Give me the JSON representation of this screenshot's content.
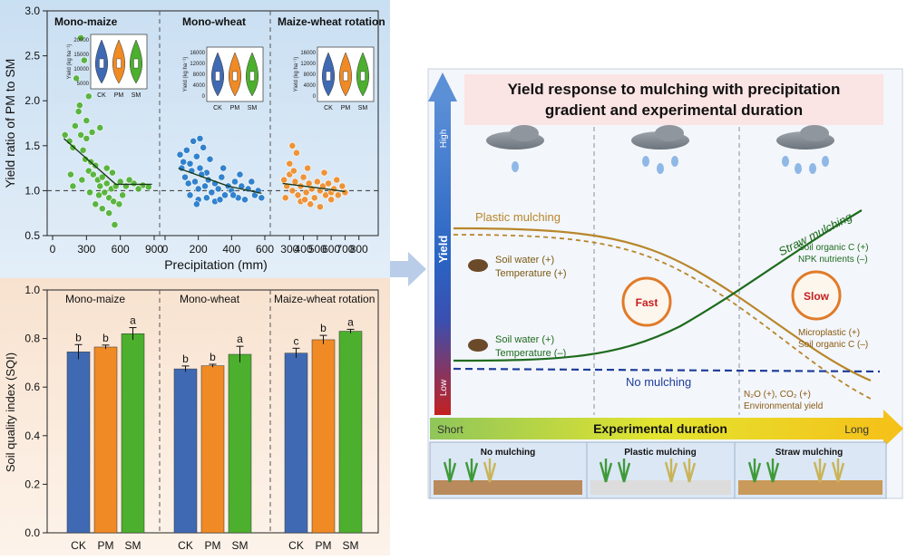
{
  "chart_data": [
    {
      "type": "scatter",
      "ylabel": "Yield ratio of PM to SM",
      "xlabel": "Precipitation (mm)",
      "ylim": [
        0.5,
        3.0
      ],
      "yticks": [
        "0.5",
        "1.0",
        "1.5",
        "2.0",
        "2.5",
        "3.0"
      ],
      "reference_line": 1.0,
      "panels": [
        {
          "title": "Mono-maize",
          "xlim": [
            0,
            900
          ],
          "xticks": [
            "0",
            "300",
            "600",
            "900"
          ],
          "color": "#4caf2e",
          "trend": [
            [
              100,
              1.58
            ],
            [
              560,
              1.07
            ],
            [
              880,
              1.07
            ]
          ],
          "points": [
            [
              110,
              1.62
            ],
            [
              150,
              1.55
            ],
            [
              180,
              1.48
            ],
            [
              200,
              1.72
            ],
            [
              230,
              1.88
            ],
            [
              250,
              1.62
            ],
            [
              270,
              1.45
            ],
            [
              290,
              1.35
            ],
            [
              300,
              1.58
            ],
            [
              320,
              1.22
            ],
            [
              340,
              1.32
            ],
            [
              360,
              1.18
            ],
            [
              380,
              1.28
            ],
            [
              400,
              1.12
            ],
            [
              420,
              1.05
            ],
            [
              440,
              1.15
            ],
            [
              460,
              0.98
            ],
            [
              480,
              1.08
            ],
            [
              500,
              0.92
            ],
            [
              520,
              1.02
            ],
            [
              540,
              0.88
            ],
            [
              560,
              1.05
            ],
            [
              600,
              1.1
            ],
            [
              650,
              1.05
            ],
            [
              720,
              1.08
            ],
            [
              800,
              1.06
            ],
            [
              210,
              2.25
            ],
            [
              250,
              2.7
            ],
            [
              280,
              2.45
            ],
            [
              320,
              2.05
            ],
            [
              240,
              1.95
            ],
            [
              300,
              1.78
            ],
            [
              350,
              1.65
            ],
            [
              420,
              1.7
            ],
            [
              480,
              1.25
            ],
            [
              380,
              0.85
            ],
            [
              440,
              0.8
            ],
            [
              500,
              0.75
            ],
            [
              550,
              0.62
            ],
            [
              590,
              0.85
            ],
            [
              180,
              1.05
            ],
            [
              160,
              1.18
            ],
            [
              260,
              1.12
            ],
            [
              330,
              0.98
            ],
            [
              410,
              0.95
            ],
            [
              530,
              1.2
            ],
            [
              620,
              0.95
            ],
            [
              680,
              1.12
            ],
            [
              760,
              1.02
            ],
            [
              850,
              1.04
            ]
          ]
        },
        {
          "title": "Mono-wheat",
          "xlim": [
            0,
            600
          ],
          "xticks": [
            "0",
            "200",
            "400",
            "600"
          ],
          "color": "#1f77c9",
          "trend": [
            [
              80,
              1.25
            ],
            [
              380,
              1.05
            ],
            [
              580,
              0.97
            ]
          ],
          "points": [
            [
              90,
              1.4
            ],
            [
              110,
              1.32
            ],
            [
              130,
              1.45
            ],
            [
              150,
              1.3
            ],
            [
              170,
              1.55
            ],
            [
              190,
              1.38
            ],
            [
              210,
              1.25
            ],
            [
              230,
              1.48
            ],
            [
              250,
              1.2
            ],
            [
              270,
              1.35
            ],
            [
              120,
              1.15
            ],
            [
              140,
              1.08
            ],
            [
              160,
              1.22
            ],
            [
              180,
              1.1
            ],
            [
              200,
              1.02
            ],
            [
              220,
              1.18
            ],
            [
              240,
              1.05
            ],
            [
              260,
              1.12
            ],
            [
              280,
              0.98
            ],
            [
              300,
              1.08
            ],
            [
              320,
              1.02
            ],
            [
              340,
              1.15
            ],
            [
              360,
              0.95
            ],
            [
              380,
              1.05
            ],
            [
              400,
              1.0
            ],
            [
              420,
              1.1
            ],
            [
              440,
              0.92
            ],
            [
              460,
              1.05
            ],
            [
              500,
              1.02
            ],
            [
              540,
              0.95
            ],
            [
              580,
              0.92
            ],
            [
              100,
              1.25
            ],
            [
              150,
              0.95
            ],
            [
              200,
              0.9
            ],
            [
              250,
              0.92
            ],
            [
              300,
              0.88
            ],
            [
              350,
              1.25
            ],
            [
              450,
              1.18
            ],
            [
              520,
              1.1
            ],
            [
              560,
              1.0
            ],
            [
              210,
              1.58
            ],
            [
              190,
              0.85
            ],
            [
              330,
              0.9
            ],
            [
              410,
              0.95
            ],
            [
              480,
              0.9
            ]
          ]
        },
        {
          "title": "Maize-wheat rotation",
          "xlim": [
            200,
            900
          ],
          "xticks": [
            "300",
            "400",
            "500",
            "600",
            "700",
            "800"
          ],
          "color": "#f08a24",
          "trend": [
            [
              250,
              1.08
            ],
            [
              560,
              1.02
            ],
            [
              700,
              0.99
            ]
          ],
          "points": [
            [
              260,
              1.12
            ],
            [
              280,
              1.05
            ],
            [
              300,
              1.18
            ],
            [
              320,
              1.0
            ],
            [
              340,
              1.1
            ],
            [
              360,
              0.95
            ],
            [
              380,
              1.05
            ],
            [
              400,
              1.15
            ],
            [
              420,
              0.98
            ],
            [
              440,
              1.08
            ],
            [
              460,
              1.02
            ],
            [
              480,
              0.92
            ],
            [
              500,
              1.1
            ],
            [
              520,
              1.0
            ],
            [
              540,
              1.05
            ],
            [
              560,
              0.95
            ],
            [
              580,
              1.08
            ],
            [
              600,
              0.98
            ],
            [
              620,
              1.02
            ],
            [
              650,
              0.95
            ],
            [
              680,
              1.05
            ],
            [
              700,
              0.98
            ],
            [
              300,
              1.3
            ],
            [
              350,
              1.42
            ],
            [
              320,
              1.5
            ],
            [
              380,
              0.88
            ],
            [
              450,
              0.85
            ],
            [
              520,
              0.82
            ],
            [
              600,
              0.9
            ],
            [
              270,
              0.92
            ],
            [
              430,
              1.25
            ],
            [
              550,
              1.2
            ],
            [
              640,
              1.12
            ],
            [
              330,
              1.22
            ],
            [
              410,
              0.9
            ]
          ]
        }
      ],
      "insets": [
        {
          "ylabel": "Yield (kg ha⁻¹)",
          "yticks": [
            "5000",
            "10000",
            "15000",
            "20000"
          ],
          "categories": [
            "CK",
            "PM",
            "SM"
          ],
          "colors": [
            "#3f6ab3",
            "#f08a24",
            "#4caf2e"
          ]
        },
        {
          "ylabel": "Yield (kg ha⁻¹)",
          "yticks": [
            "0",
            "4000",
            "8000",
            "12000",
            "16000"
          ],
          "categories": [
            "CK",
            "PM",
            "SM"
          ],
          "colors": [
            "#3f6ab3",
            "#f08a24",
            "#4caf2e"
          ]
        },
        {
          "ylabel": "Yield (kg ha⁻¹)",
          "yticks": [
            "0",
            "4000",
            "8000",
            "12000",
            "16000"
          ],
          "categories": [
            "CK",
            "PM",
            "SM"
          ],
          "colors": [
            "#3f6ab3",
            "#f08a24",
            "#4caf2e"
          ]
        }
      ]
    },
    {
      "type": "bar",
      "ylabel": "Soil quality index (SQI)",
      "ylim": [
        0.0,
        1.0
      ],
      "yticks": [
        "0.0",
        "0.2",
        "0.4",
        "0.6",
        "0.8",
        "1.0"
      ],
      "categories": [
        "CK",
        "PM",
        "SM"
      ],
      "colors": [
        "#3f6ab3",
        "#f08a24",
        "#4caf2e"
      ],
      "groups": [
        {
          "title": "Mono-maize",
          "values": [
            0.745,
            0.765,
            0.82
          ],
          "errors": [
            0.03,
            0.008,
            0.025
          ],
          "letters": [
            "b",
            "b",
            "a"
          ]
        },
        {
          "title": "Mono-wheat",
          "values": [
            0.675,
            0.688,
            0.735
          ],
          "errors": [
            0.012,
            0.006,
            0.033
          ],
          "letters": [
            "b",
            "b",
            "a"
          ]
        },
        {
          "title": "Maize-wheat rotation",
          "values": [
            0.74,
            0.795,
            0.83
          ],
          "errors": [
            0.02,
            0.018,
            0.008
          ],
          "letters": [
            "c",
            "b",
            "a"
          ]
        }
      ]
    }
  ],
  "diagram": {
    "title_line1": "Yield response to mulching with precipitation",
    "title_line2": "gradient and experimental duration",
    "yaxis_label": "Yield",
    "yaxis_high": "High",
    "yaxis_low": "Low",
    "xaxis_label": "Experimental duration",
    "xaxis_short": "Short",
    "xaxis_long": "Long",
    "plastic_label": "Plastic mulching",
    "straw_label": "Straw mulching",
    "no_label": "No mulching",
    "plastic_effect_1": "Soil water (+)",
    "plastic_effect_2": "Temperature (+)",
    "straw_effect_1": "Soil water (+)",
    "straw_effect_2": "Temperature (–)",
    "straw_long_1": "Soil organic C (+)",
    "straw_long_2": "NPK nutrients (–)",
    "plastic_long_1": "Microplastic (+)",
    "plastic_long_2": "Soil organic C (–)",
    "env_1": "N₂O (+), CO₂ (+)",
    "env_2": "Environmental yield",
    "cycle_fast": "Fast",
    "cycle_slow": "Slow",
    "bottom_panels": [
      "No mulching",
      "Plastic mulching",
      "Straw mulching"
    ],
    "colors": {
      "plastic": "#b8862b",
      "straw": "#1e6b1e",
      "none": "#1f3d99"
    }
  }
}
